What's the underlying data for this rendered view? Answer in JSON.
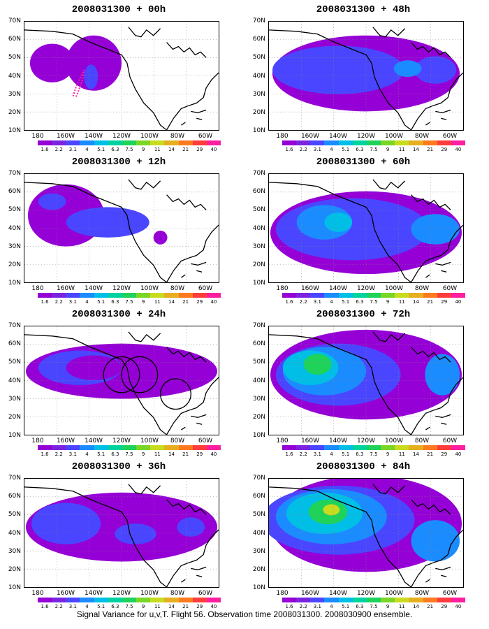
{
  "caption": "Signal Variance for u,v,T. Flight 56. Observation time 2008031300. 2008030900 ensemble.",
  "y_axis_labels": [
    "70N",
    "60N",
    "50N",
    "40N",
    "30N",
    "20N",
    "10N"
  ],
  "x_axis_labels": [
    "180",
    "160W",
    "140W",
    "120W",
    "100W",
    "80W",
    "60W"
  ],
  "colorbar": {
    "labels": [
      "1.6",
      "2.2",
      "3.1",
      "4",
      "5.1",
      "6.3",
      "7.5",
      "9",
      "11",
      "14",
      "21",
      "29",
      "40"
    ],
    "colors": [
      "#9500d6",
      "#7a24e0",
      "#4a46ff",
      "#1b8cff",
      "#00bfe6",
      "#00d3a0",
      "#1ed25a",
      "#7ad624",
      "#c8dc1e",
      "#e6af1e",
      "#ff7a1e",
      "#ff3c3c",
      "#ff1ea0"
    ]
  },
  "panels": [
    {
      "title": "2008031300 + 00h",
      "label_id": "panel-00h"
    },
    {
      "title": "2008031300 + 48h",
      "label_id": "panel-48h"
    },
    {
      "title": "2008031300 + 12h",
      "label_id": "panel-12h"
    },
    {
      "title": "2008031300 + 60h",
      "label_id": "panel-60h"
    },
    {
      "title": "2008031300 + 24h",
      "label_id": "panel-24h"
    },
    {
      "title": "2008031300 + 72h",
      "label_id": "panel-72h"
    },
    {
      "title": "2008031300 + 36h",
      "label_id": "panel-36h"
    },
    {
      "title": "2008031300 + 84h",
      "label_id": "panel-84h"
    }
  ]
}
